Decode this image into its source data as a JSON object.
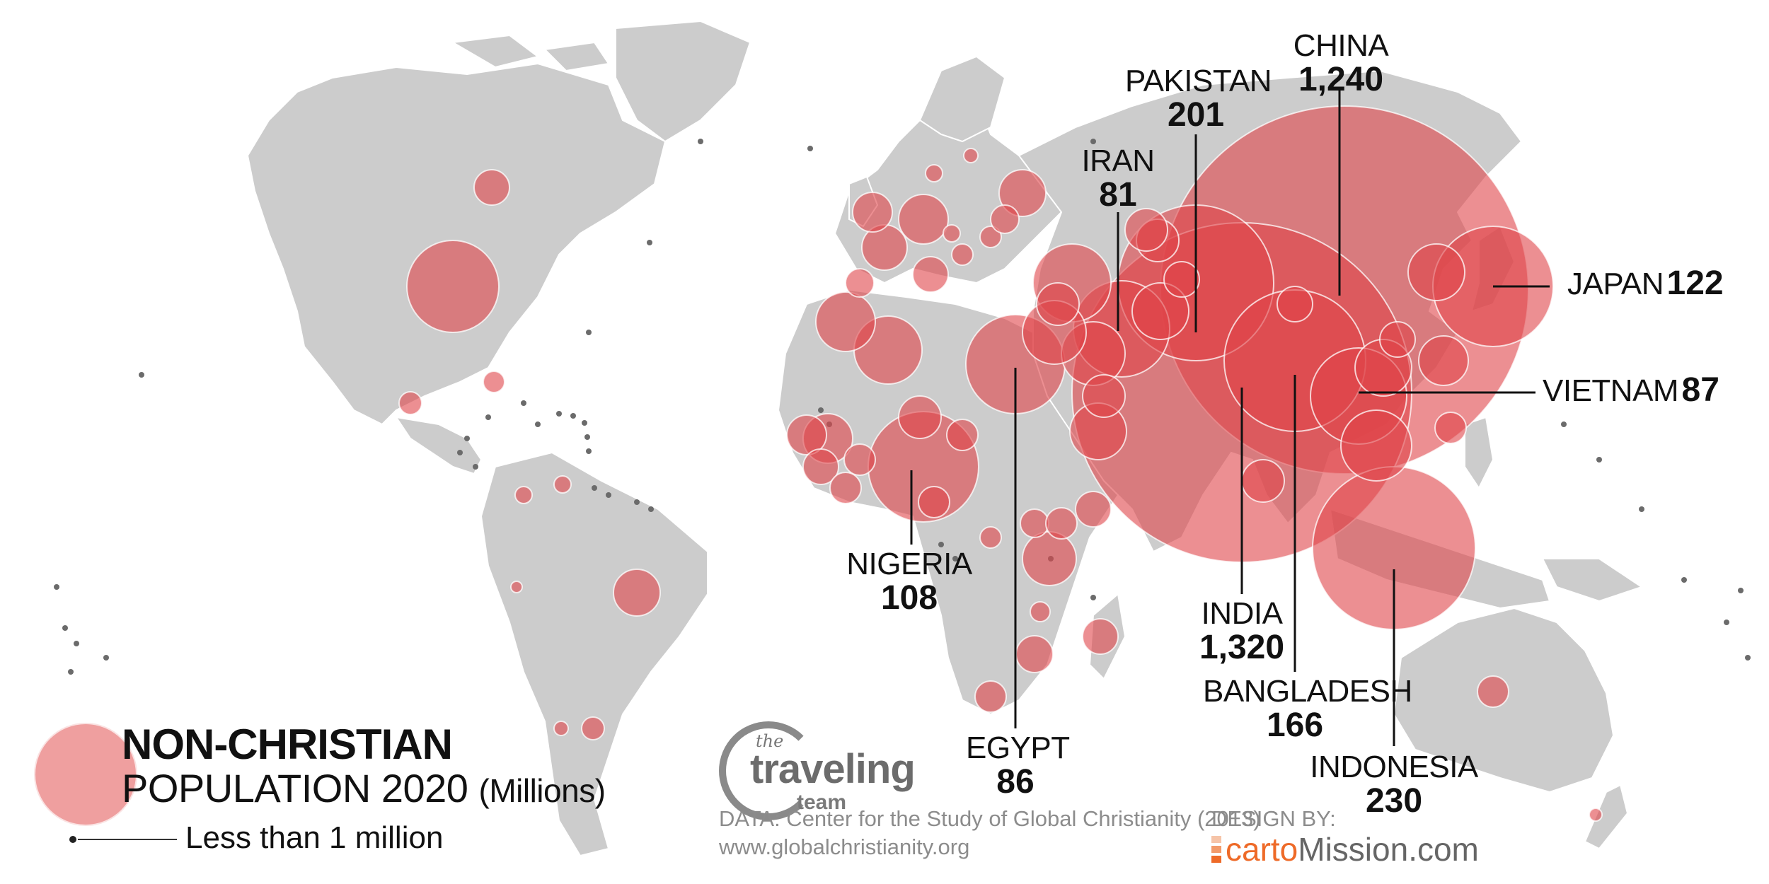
{
  "map": {
    "title_bold": "NON-CHRISTIAN",
    "title_rest": "POPULATION 2020",
    "title_unit": "(Millions)",
    "small_legend": "Less than 1 million",
    "colors": {
      "land": "#cccccc",
      "bubble": "#e0444a",
      "bubble_alpha": 0.6,
      "dot": "#6b6b6b",
      "text": "#111111",
      "accent_orange": "#ee6a28"
    }
  },
  "labels": {
    "china": {
      "name": "CHINA",
      "value": "1,240"
    },
    "pakistan": {
      "name": "PAKISTAN",
      "value": "201"
    },
    "iran": {
      "name": "IRAN",
      "value": "81"
    },
    "japan": {
      "name": "JAPAN",
      "value": "122"
    },
    "vietnam": {
      "name": "VIETNAM",
      "value": "87"
    },
    "nigeria": {
      "name": "NIGERIA",
      "value": "108"
    },
    "egypt": {
      "name": "EGYPT",
      "value": "86"
    },
    "india": {
      "name": "INDIA",
      "value": "1,320"
    },
    "bangladesh": {
      "name": "BANGLADESH",
      "value": "166"
    },
    "indonesia": {
      "name": "INDONESIA",
      "value": "230"
    }
  },
  "logo": {
    "the": "the",
    "main": "traveling",
    "team": "team"
  },
  "source": {
    "line1": "DATA: Center for the Study of Global Christianity (2013)",
    "line2": "www.globalchristianity.org"
  },
  "design": {
    "label": "DESIGN BY:",
    "brand_a": "carto",
    "brand_b": "Mission.com"
  }
}
